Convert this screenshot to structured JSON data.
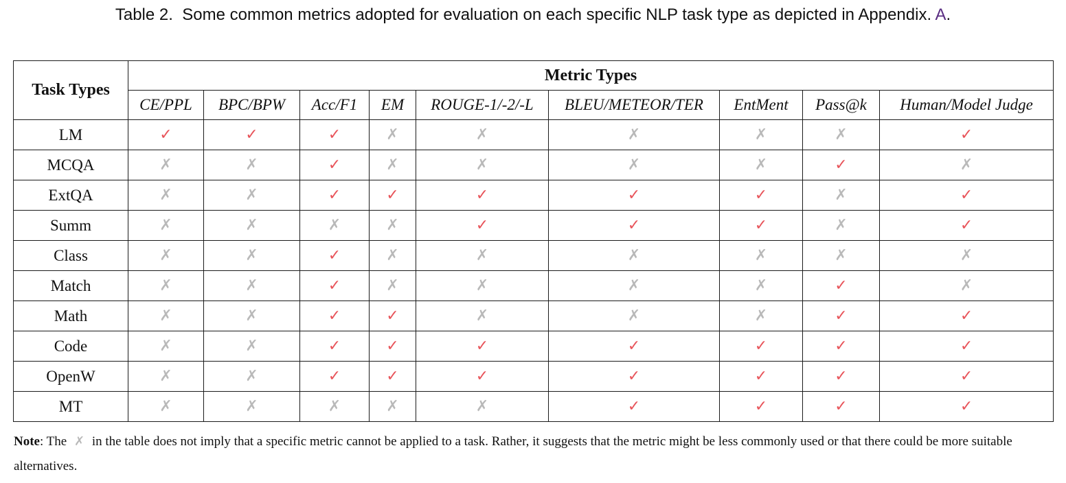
{
  "caption": {
    "label": "Table 2.",
    "text": "Some common metrics adopted for evaluation on each specific NLP task type as depicted in Appendix.",
    "ref": "A",
    "end": "."
  },
  "table": {
    "task_header": "Task Types",
    "metric_group_header": "Metric Types",
    "metrics": [
      "CE/PPL",
      "BPC/BPW",
      "Acc/F1",
      "EM",
      "ROUGE-1/-2/-L",
      "BLEU/METEOR/TER",
      "EntMent",
      "Pass@k",
      "Human/Model Judge"
    ],
    "symbols": {
      "yes": "✓",
      "no": "✗"
    },
    "colors": {
      "yes": "#e8545a",
      "no": "#b9b9b9",
      "ref_link": "#5a2d82"
    },
    "rows": [
      {
        "task": "LM",
        "marks": [
          1,
          1,
          1,
          0,
          0,
          0,
          0,
          0,
          1
        ]
      },
      {
        "task": "MCQA",
        "marks": [
          0,
          0,
          1,
          0,
          0,
          0,
          0,
          1,
          0
        ]
      },
      {
        "task": "ExtQA",
        "marks": [
          0,
          0,
          1,
          1,
          1,
          1,
          1,
          0,
          1
        ]
      },
      {
        "task": "Summ",
        "marks": [
          0,
          0,
          0,
          0,
          1,
          1,
          1,
          0,
          1
        ]
      },
      {
        "task": "Class",
        "marks": [
          0,
          0,
          1,
          0,
          0,
          0,
          0,
          0,
          0
        ]
      },
      {
        "task": "Match",
        "marks": [
          0,
          0,
          1,
          0,
          0,
          0,
          0,
          1,
          0
        ]
      },
      {
        "task": "Math",
        "marks": [
          0,
          0,
          1,
          1,
          0,
          0,
          0,
          1,
          1
        ]
      },
      {
        "task": "Code",
        "marks": [
          0,
          0,
          1,
          1,
          1,
          1,
          1,
          1,
          1
        ]
      },
      {
        "task": "OpenW",
        "marks": [
          0,
          0,
          1,
          1,
          1,
          1,
          1,
          1,
          1
        ]
      },
      {
        "task": "MT",
        "marks": [
          0,
          0,
          0,
          0,
          0,
          1,
          1,
          1,
          1
        ]
      }
    ]
  },
  "note": {
    "label": "Note",
    "before": ": The",
    "after": "in the table does not imply that a specific metric cannot be applied to a task. Rather, it suggests that the metric might be less commonly used or that there could be more suitable alternatives."
  }
}
